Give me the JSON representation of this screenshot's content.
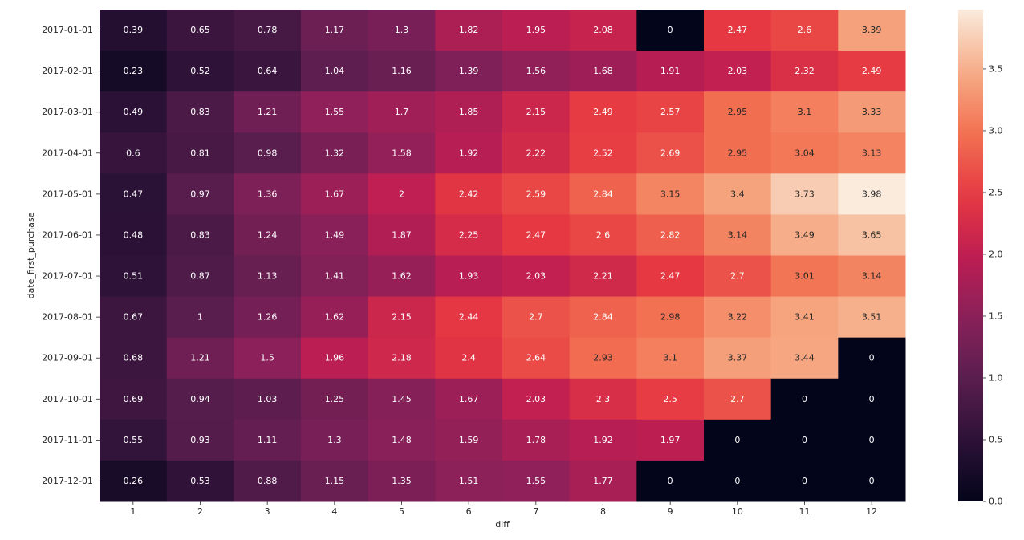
{
  "chart_data": {
    "type": "heatmap",
    "xlabel": "diff",
    "ylabel": "date_first_purchase",
    "x": [
      "1",
      "2",
      "3",
      "4",
      "5",
      "6",
      "7",
      "8",
      "9",
      "10",
      "11",
      "12"
    ],
    "y": [
      "2017-01-01",
      "2017-02-01",
      "2017-03-01",
      "2017-04-01",
      "2017-05-01",
      "2017-06-01",
      "2017-07-01",
      "2017-08-01",
      "2017-09-01",
      "2017-10-01",
      "2017-11-01",
      "2017-12-01"
    ],
    "values": [
      [
        "0.39",
        "0.65",
        "0.78",
        "1.17",
        "1.3",
        "1.82",
        "1.95",
        "2.08",
        "0",
        "2.47",
        "2.6",
        "3.39"
      ],
      [
        "0.23",
        "0.52",
        "0.64",
        "1.04",
        "1.16",
        "1.39",
        "1.56",
        "1.68",
        "1.91",
        "2.03",
        "2.32",
        "2.49"
      ],
      [
        "0.49",
        "0.83",
        "1.21",
        "1.55",
        "1.7",
        "1.85",
        "2.15",
        "2.49",
        "2.57",
        "2.95",
        "3.1",
        "3.33"
      ],
      [
        "0.6",
        "0.81",
        "0.98",
        "1.32",
        "1.58",
        "1.92",
        "2.22",
        "2.52",
        "2.69",
        "2.95",
        "3.04",
        "3.13"
      ],
      [
        "0.47",
        "0.97",
        "1.36",
        "1.67",
        "2",
        "2.42",
        "2.59",
        "2.84",
        "3.15",
        "3.4",
        "3.73",
        "3.98"
      ],
      [
        "0.48",
        "0.83",
        "1.24",
        "1.49",
        "1.87",
        "2.25",
        "2.47",
        "2.6",
        "2.82",
        "3.14",
        "3.49",
        "3.65"
      ],
      [
        "0.51",
        "0.87",
        "1.13",
        "1.41",
        "1.62",
        "1.93",
        "2.03",
        "2.21",
        "2.47",
        "2.7",
        "3.01",
        "3.14"
      ],
      [
        "0.67",
        "1",
        "1.26",
        "1.62",
        "2.15",
        "2.44",
        "2.7",
        "2.84",
        "2.98",
        "3.22",
        "3.41",
        "3.51"
      ],
      [
        "0.68",
        "1.21",
        "1.5",
        "1.96",
        "2.18",
        "2.4",
        "2.64",
        "2.93",
        "3.1",
        "3.37",
        "3.44",
        "0"
      ],
      [
        "0.69",
        "0.94",
        "1.03",
        "1.25",
        "1.45",
        "1.67",
        "2.03",
        "2.3",
        "2.5",
        "2.7",
        "0",
        "0"
      ],
      [
        "0.55",
        "0.93",
        "1.11",
        "1.3",
        "1.48",
        "1.59",
        "1.78",
        "1.92",
        "1.97",
        "0",
        "0",
        "0"
      ],
      [
        "0.26",
        "0.53",
        "0.88",
        "1.15",
        "1.35",
        "1.51",
        "1.55",
        "1.77",
        "0",
        "0",
        "0",
        "0"
      ]
    ],
    "color_range": [
      0,
      3.98
    ],
    "colormap": "rocket",
    "colorbar": {
      "ticks": [
        "0.0",
        "0.5",
        "1.0",
        "1.5",
        "2.0",
        "2.5",
        "3.0",
        "3.5"
      ],
      "position": "right"
    },
    "annotations": true,
    "grid": false
  }
}
